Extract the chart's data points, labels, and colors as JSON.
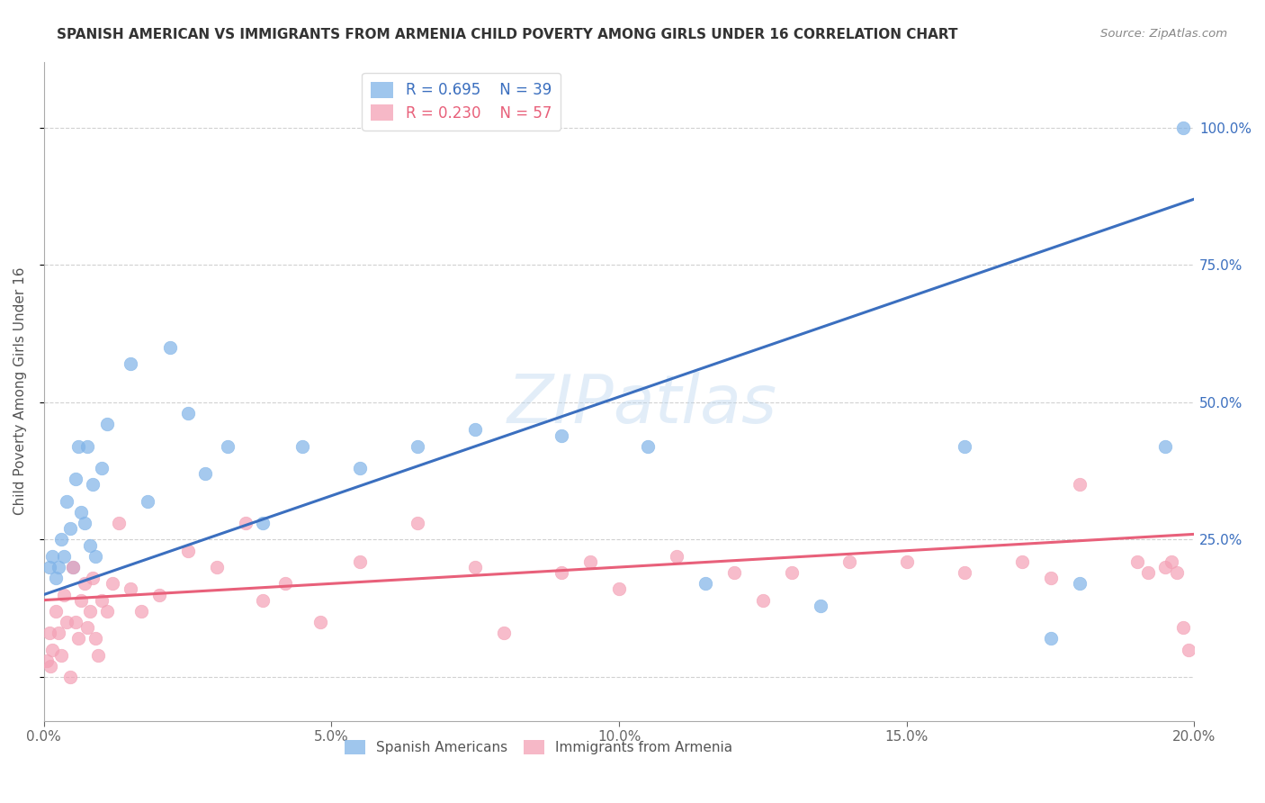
{
  "title": "SPANISH AMERICAN VS IMMIGRANTS FROM ARMENIA CHILD POVERTY AMONG GIRLS UNDER 16 CORRELATION CHART",
  "source": "Source: ZipAtlas.com",
  "ylabel": "Child Poverty Among Girls Under 16",
  "blue_R": 0.695,
  "blue_N": 39,
  "pink_R": 0.23,
  "pink_N": 57,
  "blue_label": "Spanish Americans",
  "pink_label": "Immigrants from Armenia",
  "blue_color": "#7FB3E8",
  "pink_color": "#F4A0B5",
  "blue_line_color": "#3B6FBF",
  "pink_line_color": "#E8607A",
  "watermark": "ZIPatlas",
  "xlim": [
    0,
    20
  ],
  "ylim": [
    -8,
    112
  ],
  "ytick_values": [
    0,
    25,
    50,
    75,
    100
  ],
  "ytick_labels": [
    "",
    "25.0%",
    "50.0%",
    "75.0%",
    "100.0%"
  ],
  "xtick_values": [
    0,
    5,
    10,
    15,
    20
  ],
  "xtick_labels": [
    "0.0%",
    "5.0%",
    "10.0%",
    "15.0%",
    "20.0%"
  ],
  "blue_line_x0": 0,
  "blue_line_y0": 15,
  "blue_line_x1": 20,
  "blue_line_y1": 87,
  "pink_line_x0": 0,
  "pink_line_y0": 14,
  "pink_line_x1": 20,
  "pink_line_y1": 26,
  "blue_x": [
    0.1,
    0.15,
    0.2,
    0.25,
    0.3,
    0.35,
    0.4,
    0.45,
    0.5,
    0.55,
    0.6,
    0.65,
    0.7,
    0.75,
    0.8,
    0.85,
    0.9,
    1.0,
    1.1,
    1.5,
    1.8,
    2.2,
    2.5,
    2.8,
    3.2,
    3.8,
    4.5,
    5.5,
    6.5,
    7.5,
    9.0,
    10.5,
    11.5,
    13.5,
    16.0,
    17.5,
    18.0,
    19.5,
    19.8
  ],
  "blue_y": [
    20,
    22,
    18,
    20,
    25,
    22,
    32,
    27,
    20,
    36,
    42,
    30,
    28,
    42,
    24,
    35,
    22,
    38,
    46,
    57,
    32,
    60,
    48,
    37,
    42,
    28,
    42,
    38,
    42,
    45,
    44,
    42,
    17,
    13,
    42,
    7,
    17,
    42,
    100
  ],
  "pink_x": [
    0.05,
    0.1,
    0.12,
    0.15,
    0.2,
    0.25,
    0.3,
    0.35,
    0.4,
    0.45,
    0.5,
    0.55,
    0.6,
    0.65,
    0.7,
    0.75,
    0.8,
    0.85,
    0.9,
    0.95,
    1.0,
    1.1,
    1.2,
    1.3,
    1.5,
    1.7,
    2.0,
    2.5,
    3.0,
    3.5,
    3.8,
    4.2,
    4.8,
    5.5,
    6.5,
    7.5,
    8.0,
    9.0,
    9.5,
    10.0,
    11.0,
    12.0,
    12.5,
    13.0,
    14.0,
    15.0,
    16.0,
    17.0,
    17.5,
    18.0,
    19.0,
    19.2,
    19.5,
    19.6,
    19.7,
    19.8,
    19.9
  ],
  "pink_y": [
    3,
    8,
    2,
    5,
    12,
    8,
    4,
    15,
    10,
    0,
    20,
    10,
    7,
    14,
    17,
    9,
    12,
    18,
    7,
    4,
    14,
    12,
    17,
    28,
    16,
    12,
    15,
    23,
    20,
    28,
    14,
    17,
    10,
    21,
    28,
    20,
    8,
    19,
    21,
    16,
    22,
    19,
    14,
    19,
    21,
    21,
    19,
    21,
    18,
    35,
    21,
    19,
    20,
    21,
    19,
    9,
    5
  ]
}
